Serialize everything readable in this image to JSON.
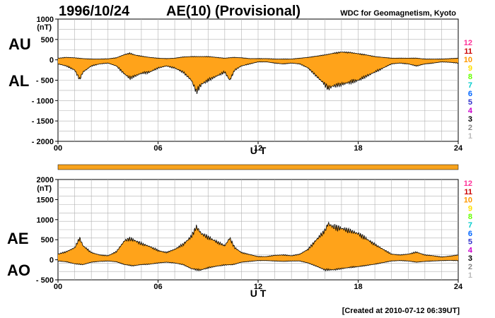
{
  "header": {
    "date": "1996/10/24",
    "title": "AE(10) (Provisional)",
    "institution": "WDC for Geomagnetism, Kyoto"
  },
  "footer": {
    "created": "[Created at 2010-07-12 06:39UT]"
  },
  "colors": {
    "fill": "#ffa31a",
    "outline": "#000000",
    "grid": "#b0b0b0",
    "flag_bar": "#f7a21c"
  },
  "level_colors": [
    "#bbbbbb",
    "#888888",
    "#000000",
    "#cc00cc",
    "#3333cc",
    "#0066ff",
    "#00cccc",
    "#66ff00",
    "#ffe000",
    "#ff9900",
    "#cc0000",
    "#ff3399"
  ],
  "chart_data": [
    {
      "type": "area",
      "panel": "AU/AL",
      "ylabel_top": "AU",
      "ylabel_bottom": "AL",
      "unit": "(nT)",
      "xlabel": "U T",
      "xlim": [
        0,
        24
      ],
      "ylim": [
        -2000,
        1000
      ],
      "x_tick_labels": [
        "00",
        "06",
        "12",
        "18",
        "24"
      ],
      "y_tick_labels": [
        "1000",
        "500",
        "0",
        "- 500",
        "- 1000",
        "- 1500",
        "- 2000"
      ],
      "y_ticks": [
        1000,
        500,
        0,
        -500,
        -1000,
        -1500,
        -2000
      ],
      "level_labels": [
        "1",
        "2",
        "3",
        "4",
        "5",
        "6",
        "7",
        "8",
        "9",
        "10",
        "11",
        "12"
      ],
      "series": [
        {
          "name": "AU",
          "x": [
            0,
            0.5,
            1.0,
            1.5,
            2.0,
            2.5,
            3.0,
            3.5,
            4.0,
            4.3,
            4.6,
            5.0,
            5.5,
            6.0,
            6.5,
            7.0,
            7.5,
            8.0,
            8.5,
            9.0,
            9.5,
            10.0,
            10.5,
            11.0,
            11.5,
            12.0,
            12.5,
            13.0,
            13.5,
            14.0,
            14.5,
            15.0,
            15.5,
            16.0,
            16.5,
            17.0,
            17.5,
            18.0,
            18.5,
            19.0,
            19.5,
            20.0,
            20.5,
            21.0,
            21.5,
            22.0,
            22.5,
            23.0,
            23.5,
            24.0
          ],
          "values": [
            40,
            60,
            50,
            30,
            20,
            20,
            25,
            50,
            130,
            160,
            120,
            90,
            60,
            40,
            30,
            40,
            70,
            80,
            80,
            80,
            60,
            40,
            60,
            50,
            30,
            30,
            30,
            20,
            20,
            20,
            40,
            60,
            90,
            120,
            160,
            190,
            180,
            150,
            120,
            80,
            60,
            40,
            40,
            40,
            40,
            20,
            20,
            20,
            30,
            40
          ]
        },
        {
          "name": "AL",
          "x": [
            0,
            0.5,
            1.0,
            1.3,
            1.5,
            2.0,
            2.5,
            3.0,
            3.5,
            4.0,
            4.3,
            4.6,
            5.0,
            5.5,
            6.0,
            6.5,
            7.0,
            7.5,
            8.0,
            8.3,
            8.6,
            9.0,
            9.5,
            10.0,
            10.3,
            10.6,
            11.0,
            11.5,
            12.0,
            12.5,
            13.0,
            13.5,
            14.0,
            14.5,
            15.0,
            15.5,
            16.0,
            16.2,
            16.5,
            17.0,
            17.5,
            18.0,
            18.5,
            19.0,
            19.5,
            20.0,
            20.5,
            21.0,
            21.5,
            22.0,
            22.5,
            23.0,
            23.5,
            24.0
          ],
          "values": [
            -100,
            -150,
            -250,
            -480,
            -300,
            -150,
            -100,
            -80,
            -150,
            -350,
            -450,
            -400,
            -330,
            -300,
            -200,
            -150,
            -200,
            -300,
            -500,
            -780,
            -600,
            -500,
            -400,
            -300,
            -500,
            -250,
            -150,
            -100,
            -50,
            -50,
            -80,
            -100,
            -80,
            -100,
            -200,
            -400,
            -600,
            -700,
            -640,
            -600,
            -550,
            -500,
            -400,
            -300,
            -200,
            -100,
            -80,
            -100,
            -150,
            -100,
            -80,
            -50,
            -60,
            -80
          ]
        }
      ]
    },
    {
      "type": "area",
      "panel": "AE/AO",
      "ylabel_top": "AE",
      "ylabel_bottom": "AO",
      "unit": "(nT)",
      "xlabel": "U T",
      "xlim": [
        0,
        24
      ],
      "ylim": [
        -500,
        2000
      ],
      "x_tick_labels": [
        "00",
        "06",
        "12",
        "18",
        "24"
      ],
      "y_tick_labels": [
        "2000",
        "1500",
        "1000",
        "500",
        "0",
        "- 500"
      ],
      "y_ticks": [
        2000,
        1500,
        1000,
        500,
        0,
        -500
      ],
      "level_labels": [
        "1",
        "2",
        "3",
        "4",
        "5",
        "6",
        "7",
        "8",
        "9",
        "10",
        "11",
        "12"
      ],
      "series": [
        {
          "name": "AE",
          "x": [
            0,
            0.5,
            1.0,
            1.3,
            1.5,
            2.0,
            2.5,
            3.0,
            3.5,
            4.0,
            4.3,
            4.6,
            5.0,
            5.5,
            6.0,
            6.5,
            7.0,
            7.5,
            8.0,
            8.3,
            8.6,
            9.0,
            9.5,
            10.0,
            10.3,
            10.6,
            11.0,
            11.5,
            12.0,
            12.5,
            13.0,
            13.5,
            14.0,
            14.5,
            15.0,
            15.5,
            16.0,
            16.2,
            16.5,
            17.0,
            17.5,
            18.0,
            18.5,
            19.0,
            19.5,
            20.0,
            20.5,
            21.0,
            21.5,
            22.0,
            22.5,
            23.0,
            23.5,
            24.0
          ],
          "values": [
            140,
            200,
            300,
            540,
            350,
            180,
            120,
            100,
            200,
            480,
            520,
            480,
            400,
            330,
            230,
            180,
            260,
            380,
            580,
            820,
            650,
            560,
            450,
            350,
            540,
            300,
            180,
            130,
            80,
            80,
            110,
            120,
            100,
            140,
            260,
            500,
            720,
            900,
            820,
            780,
            720,
            650,
            520,
            380,
            260,
            140,
            120,
            140,
            190,
            120,
            100,
            70,
            90,
            120
          ]
        },
        {
          "name": "AO",
          "x": [
            0,
            0.5,
            1.0,
            1.5,
            2.0,
            2.5,
            3.0,
            3.5,
            4.0,
            4.5,
            5.0,
            5.5,
            6.0,
            6.5,
            7.0,
            7.5,
            8.0,
            8.5,
            9.0,
            9.5,
            10.0,
            10.5,
            11.0,
            11.5,
            12.0,
            12.5,
            13.0,
            13.5,
            14.0,
            14.5,
            15.0,
            15.5,
            16.0,
            16.5,
            17.0,
            17.5,
            18.0,
            18.5,
            19.0,
            19.5,
            20.0,
            20.5,
            21.0,
            21.5,
            22.0,
            22.5,
            23.0,
            23.5,
            24.0
          ],
          "values": [
            -30,
            -50,
            -100,
            -120,
            -60,
            -40,
            -30,
            -50,
            -120,
            -150,
            -120,
            -110,
            -80,
            -60,
            -80,
            -120,
            -220,
            -260,
            -200,
            -160,
            -130,
            -120,
            -60,
            -40,
            -20,
            -20,
            -30,
            -40,
            -30,
            -30,
            -80,
            -160,
            -250,
            -250,
            -220,
            -190,
            -170,
            -140,
            -110,
            -70,
            -30,
            -20,
            -30,
            -60,
            -40,
            -30,
            -20,
            -15,
            -20
          ]
        }
      ]
    }
  ]
}
